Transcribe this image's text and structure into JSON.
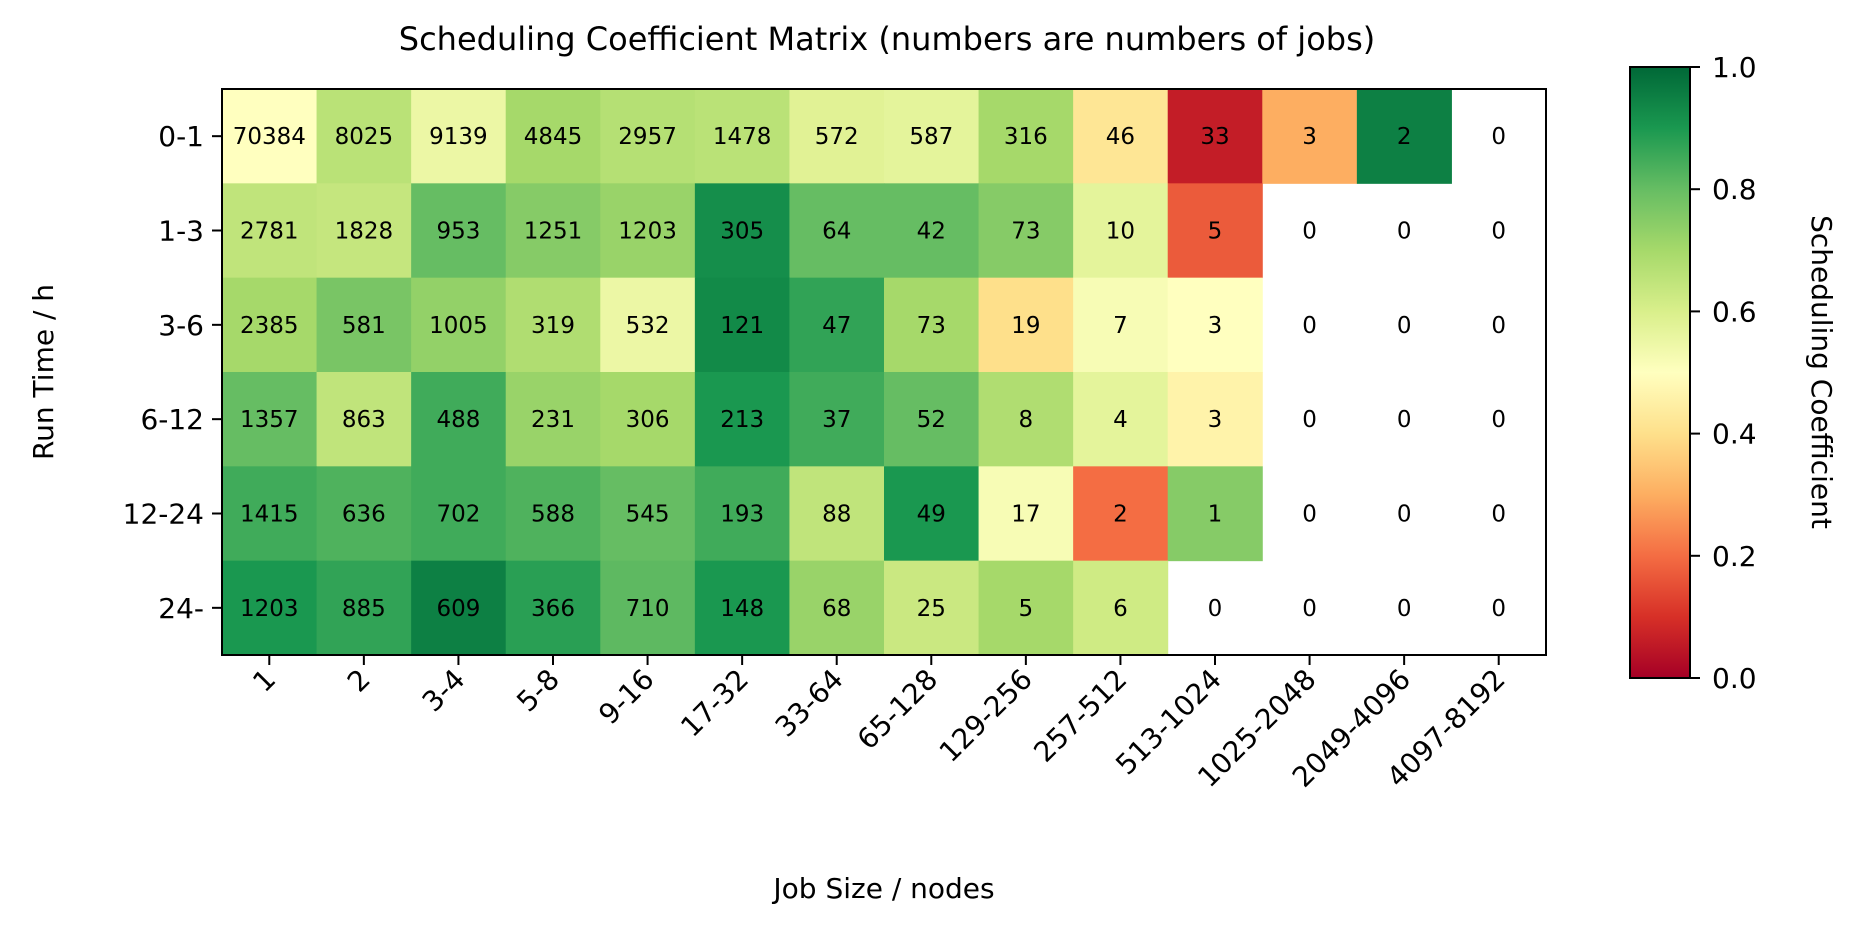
{
  "chart_data": {
    "type": "heatmap",
    "title": "Scheduling Coefficient Matrix (numbers are numbers of jobs)",
    "xlabel": "Job Size / nodes",
    "ylabel": "Run Time / h",
    "x_categories": [
      "1",
      "2",
      "3-4",
      "5-8",
      "9-16",
      "17-32",
      "33-64",
      "65-128",
      "129-256",
      "257-512",
      "513-1024",
      "1025-2048",
      "2049-4096",
      "4097-8192"
    ],
    "y_categories": [
      "0-1",
      "1-3",
      "3-6",
      "6-12",
      "12-24",
      "24-"
    ],
    "counts": [
      [
        70384,
        8025,
        9139,
        4845,
        2957,
        1478,
        572,
        587,
        316,
        46,
        33,
        3,
        2,
        0
      ],
      [
        2781,
        1828,
        953,
        1251,
        1203,
        305,
        64,
        42,
        73,
        10,
        5,
        0,
        0,
        0
      ],
      [
        2385,
        581,
        1005,
        319,
        532,
        121,
        47,
        73,
        19,
        7,
        3,
        0,
        0,
        0
      ],
      [
        1357,
        863,
        488,
        231,
        306,
        213,
        37,
        52,
        8,
        4,
        3,
        0,
        0,
        0
      ],
      [
        1415,
        636,
        702,
        588,
        545,
        193,
        88,
        49,
        17,
        2,
        1,
        0,
        0,
        0
      ],
      [
        1203,
        885,
        609,
        366,
        710,
        148,
        68,
        25,
        5,
        6,
        0,
        0,
        0,
        0
      ]
    ],
    "coefficients": [
      [
        0.5,
        0.66,
        0.55,
        0.7,
        0.67,
        0.66,
        0.58,
        0.57,
        0.7,
        0.42,
        0.06,
        0.3,
        0.95,
        null
      ],
      [
        0.65,
        0.64,
        0.8,
        0.75,
        0.72,
        0.92,
        0.8,
        0.8,
        0.75,
        0.57,
        0.17,
        null,
        null,
        null
      ],
      [
        0.7,
        0.77,
        0.73,
        0.68,
        0.55,
        0.93,
        0.87,
        0.7,
        0.4,
        0.52,
        0.5,
        null,
        null,
        null
      ],
      [
        0.8,
        0.65,
        0.85,
        0.72,
        0.7,
        0.9,
        0.85,
        0.8,
        0.68,
        0.57,
        0.46,
        null,
        null,
        null
      ],
      [
        0.85,
        0.83,
        0.85,
        0.83,
        0.8,
        0.85,
        0.65,
        0.9,
        0.52,
        0.2,
        0.75,
        null,
        null,
        null
      ],
      [
        0.9,
        0.87,
        0.95,
        0.88,
        0.81,
        0.9,
        0.72,
        0.63,
        0.7,
        0.62,
        null,
        null,
        null,
        null
      ]
    ],
    "colorbar": {
      "label": "Scheduling Coefficient",
      "range": [
        0.0,
        1.0
      ],
      "ticks": [
        "0.0",
        "0.2",
        "0.4",
        "0.6",
        "0.8",
        "1.0"
      ],
      "colormap": "RdYlGn",
      "stops": [
        "#a50026",
        "#d73027",
        "#f46d43",
        "#fdae61",
        "#fee08b",
        "#ffffbf",
        "#d9ef8b",
        "#a6d96a",
        "#66bd63",
        "#1a9850",
        "#006837"
      ]
    }
  }
}
